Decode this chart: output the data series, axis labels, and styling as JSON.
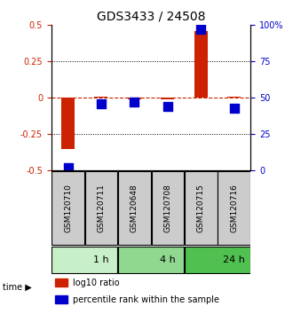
{
  "title": "GDS3433 / 24508",
  "samples": [
    "GSM120710",
    "GSM120711",
    "GSM120648",
    "GSM120708",
    "GSM120715",
    "GSM120716"
  ],
  "log10_ratio": [
    -0.35,
    0.01,
    -0.01,
    -0.01,
    0.46,
    0.01
  ],
  "percentile_rank": [
    2,
    46,
    47,
    44,
    97,
    43
  ],
  "bar_color": "#cc2200",
  "dot_color": "#0000cc",
  "ylim_left": [
    -0.5,
    0.5
  ],
  "ylim_right": [
    0,
    100
  ],
  "yticks_left": [
    -0.5,
    -0.25,
    0,
    0.25,
    0.5
  ],
  "ytick_labels_left": [
    "-0.5",
    "-0.25",
    "0",
    "0.25",
    "0.5"
  ],
  "yticks_right": [
    0,
    25,
    50,
    75,
    100
  ],
  "ytick_labels_right": [
    "0",
    "25",
    "50",
    "75",
    "100%"
  ],
  "hline_y": 0,
  "dotted_lines": [
    -0.25,
    0.25
  ],
  "time_groups": [
    {
      "label": "1 h",
      "start": 0,
      "end": 2,
      "color": "#c8f0c8"
    },
    {
      "label": "4 h",
      "start": 2,
      "end": 4,
      "color": "#90d890"
    },
    {
      "label": "24 h",
      "start": 4,
      "end": 6,
      "color": "#50c050"
    }
  ],
  "time_label": "time",
  "legend_items": [
    {
      "label": "log10 ratio",
      "color": "#cc2200"
    },
    {
      "label": "percentile rank within the sample",
      "color": "#0000cc"
    }
  ],
  "bar_width": 0.4,
  "dot_size": 60,
  "sample_box_color": "#cccccc",
  "sample_text_color": "#000000",
  "left_tick_color": "#cc2200",
  "right_tick_color": "#0000cc",
  "title_fontsize": 10,
  "tick_fontsize": 7,
  "legend_fontsize": 7
}
